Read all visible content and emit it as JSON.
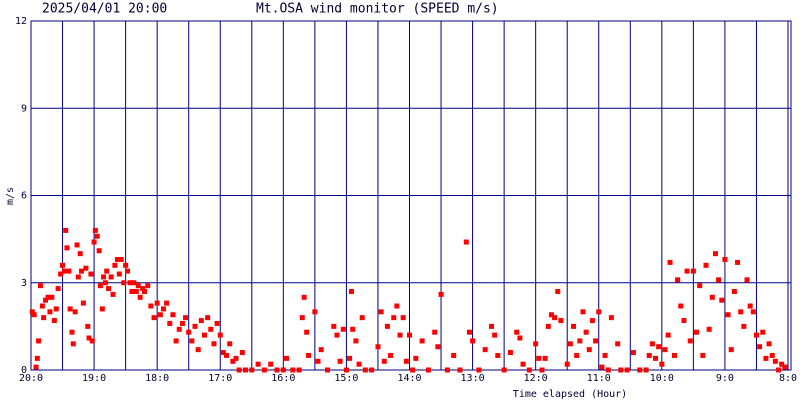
{
  "chart_data": {
    "type": "scatter",
    "title": "Mt.OSA wind monitor (SPEED m/s)",
    "timestamp": "2025/04/01 20:00",
    "y_label": "m/s",
    "x_label": "Time elapsed (Hour)",
    "color": "#ff0000",
    "grid_color": "#000080",
    "grid": true,
    "xlim": [
      0,
      12
    ],
    "ylim": [
      0,
      12
    ],
    "yticks": [
      0,
      3,
      6,
      9,
      12
    ],
    "xticks": [
      {
        "value": 0,
        "label": "20:0"
      },
      {
        "value": 1,
        "label": "19:0"
      },
      {
        "value": 2,
        "label": "18:0"
      },
      {
        "value": 3,
        "label": "17:0"
      },
      {
        "value": 4,
        "label": "16:0"
      },
      {
        "value": 5,
        "label": "15:0"
      },
      {
        "value": 6,
        "label": "14:0"
      },
      {
        "value": 7,
        "label": "13:0"
      },
      {
        "value": 8,
        "label": "12:0"
      },
      {
        "value": 9,
        "label": "11:0"
      },
      {
        "value": 10,
        "label": "10:0"
      },
      {
        "value": 11,
        "label": "9:0"
      },
      {
        "value": 12,
        "label": "8:0"
      }
    ],
    "x_minor_ticks": [
      0.5,
      1.5,
      2.5,
      3.5,
      4.5,
      5.5,
      6.5,
      7.5,
      8.5,
      9.5,
      10.5,
      11.5
    ],
    "x": [
      0.02,
      0.05,
      0.08,
      0.1,
      0.12,
      0.15,
      0.18,
      0.2,
      0.23,
      0.27,
      0.3,
      0.33,
      0.37,
      0.4,
      0.43,
      0.47,
      0.5,
      0.53,
      0.55,
      0.57,
      0.6,
      0.62,
      0.65,
      0.67,
      0.7,
      0.73,
      0.75,
      0.78,
      0.8,
      0.83,
      0.87,
      0.9,
      0.92,
      0.95,
      0.97,
      1.0,
      1.02,
      1.05,
      1.08,
      1.1,
      1.13,
      1.15,
      1.18,
      1.2,
      1.23,
      1.27,
      1.3,
      1.33,
      1.37,
      1.4,
      1.43,
      1.47,
      1.5,
      1.53,
      1.57,
      1.6,
      1.63,
      1.67,
      1.7,
      1.73,
      1.77,
      1.8,
      1.85,
      1.9,
      1.95,
      2.0,
      2.05,
      2.1,
      2.15,
      2.2,
      2.25,
      2.3,
      2.35,
      2.4,
      2.45,
      2.5,
      2.55,
      2.6,
      2.65,
      2.7,
      2.75,
      2.8,
      2.85,
      2.9,
      2.95,
      3.0,
      3.05,
      3.1,
      3.15,
      3.2,
      3.25,
      3.3,
      3.35,
      3.4,
      3.5,
      3.6,
      3.7,
      3.8,
      3.9,
      4.0,
      4.05,
      4.15,
      4.25,
      4.3,
      4.33,
      4.37,
      4.4,
      4.5,
      4.55,
      4.6,
      4.7,
      4.8,
      4.85,
      4.9,
      4.95,
      5.0,
      5.05,
      5.08,
      5.1,
      5.15,
      5.2,
      5.25,
      5.3,
      5.4,
      5.5,
      5.55,
      5.6,
      5.65,
      5.7,
      5.75,
      5.8,
      5.85,
      5.9,
      5.95,
      6.0,
      6.05,
      6.1,
      6.2,
      6.3,
      6.4,
      6.45,
      6.5,
      6.6,
      6.7,
      6.8,
      6.9,
      6.95,
      7.0,
      7.1,
      7.2,
      7.3,
      7.35,
      7.4,
      7.5,
      7.6,
      7.7,
      7.75,
      7.8,
      7.9,
      8.0,
      8.05,
      8.1,
      8.15,
      8.2,
      8.25,
      8.3,
      8.35,
      8.4,
      8.5,
      8.55,
      8.6,
      8.65,
      8.7,
      8.75,
      8.8,
      8.85,
      8.9,
      8.95,
      9.0,
      9.05,
      9.1,
      9.15,
      9.2,
      9.3,
      9.35,
      9.45,
      9.55,
      9.65,
      9.75,
      9.8,
      9.85,
      9.9,
      9.95,
      10.0,
      10.05,
      10.1,
      10.13,
      10.2,
      10.25,
      10.3,
      10.35,
      10.4,
      10.45,
      10.5,
      10.55,
      10.6,
      10.65,
      10.7,
      10.75,
      10.8,
      10.85,
      10.9,
      10.95,
      11.0,
      11.05,
      11.1,
      11.15,
      11.2,
      11.25,
      11.3,
      11.35,
      11.4,
      11.45,
      11.5,
      11.55,
      11.6,
      11.65,
      11.7,
      11.75,
      11.8,
      11.85,
      11.9,
      11.95
    ],
    "values": [
      2.0,
      1.9,
      0.1,
      0.4,
      1.0,
      2.9,
      2.2,
      1.8,
      2.4,
      2.5,
      2.0,
      2.5,
      1.7,
      2.1,
      2.8,
      3.3,
      3.6,
      3.4,
      4.8,
      4.2,
      3.4,
      2.1,
      1.3,
      0.9,
      2.0,
      4.3,
      3.2,
      4.0,
      3.4,
      2.3,
      3.5,
      1.5,
      1.1,
      3.3,
      1.0,
      4.4,
      4.8,
      4.6,
      4.1,
      2.9,
      2.1,
      3.2,
      3.0,
      3.4,
      2.8,
      3.2,
      2.6,
      3.6,
      3.8,
      3.3,
      3.8,
      3.0,
      3.6,
      3.4,
      3.0,
      2.7,
      3.0,
      2.7,
      2.9,
      2.5,
      2.8,
      2.7,
      2.9,
      2.2,
      1.8,
      2.3,
      1.9,
      2.1,
      2.3,
      1.6,
      1.9,
      1.0,
      1.4,
      1.6,
      1.8,
      1.3,
      1.0,
      1.5,
      0.7,
      1.7,
      1.2,
      1.8,
      1.4,
      0.9,
      1.6,
      1.2,
      0.6,
      0.5,
      0.9,
      0.3,
      0.4,
      0,
      0.6,
      0,
      0,
      0.2,
      0,
      0.2,
      0,
      0,
      0.4,
      0,
      0,
      1.8,
      2.5,
      1.3,
      0.5,
      2.0,
      0.3,
      0.7,
      0,
      1.5,
      1.2,
      0.3,
      1.4,
      0,
      0.4,
      2.7,
      1.4,
      1.0,
      0.2,
      1.8,
      0,
      0,
      0.8,
      2.0,
      0.3,
      1.5,
      0.5,
      1.8,
      2.2,
      1.2,
      1.8,
      0.3,
      1.2,
      0,
      0.4,
      1.0,
      0,
      1.3,
      0.8,
      2.6,
      0,
      0.5,
      0,
      4.4,
      1.3,
      1.0,
      0,
      0.7,
      1.5,
      1.2,
      0.5,
      0,
      0.6,
      1.3,
      1.1,
      0.2,
      0,
      0.9,
      0.4,
      0,
      0.4,
      1.5,
      1.9,
      1.8,
      2.7,
      1.7,
      0.2,
      0.9,
      1.5,
      0.5,
      1.0,
      2.0,
      1.3,
      0.7,
      1.7,
      1.0,
      2.0,
      0.1,
      0.5,
      0,
      1.8,
      0.9,
      0,
      0,
      0.6,
      0,
      0,
      0.5,
      0.9,
      0.4,
      0.8,
      0.2,
      0.7,
      1.2,
      3.7,
      0.5,
      3.1,
      2.2,
      1.7,
      3.4,
      1.0,
      3.4,
      1.3,
      2.9,
      0.5,
      3.6,
      1.4,
      2.5,
      4.0,
      3.1,
      2.4,
      3.8,
      1.9,
      0.7,
      2.7,
      3.7,
      2.0,
      1.5,
      3.1,
      2.2,
      2.0,
      1.2,
      0.8,
      1.3,
      0.4,
      0.9,
      0.5,
      0.3,
      0,
      0.2,
      0.1
    ]
  }
}
